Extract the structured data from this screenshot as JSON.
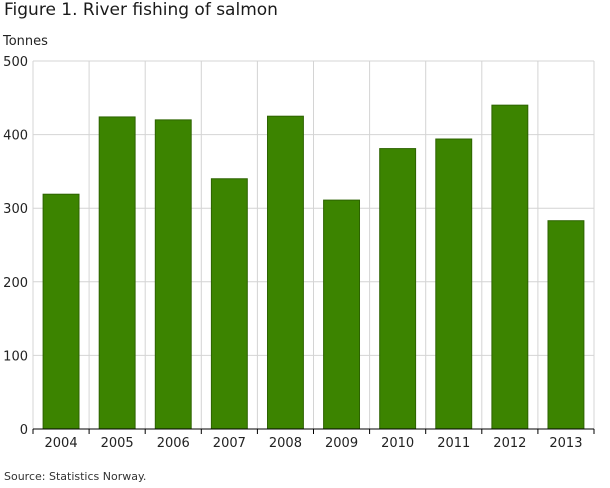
{
  "title": "Figure 1. River fishing of salmon",
  "source": "Source: Statistics Norway.",
  "chart_data": {
    "type": "bar",
    "title": "Figure 1. River fishing of salmon",
    "ylabel": "Tonnes",
    "xlabel": "",
    "categories": [
      "2004",
      "2005",
      "2006",
      "2007",
      "2008",
      "2009",
      "2010",
      "2011",
      "2012",
      "2013"
    ],
    "values": [
      319,
      424,
      420,
      340,
      425,
      311,
      381,
      394,
      440,
      283
    ],
    "ylim": [
      0,
      500
    ],
    "yticks": [
      0,
      100,
      200,
      300,
      400,
      500
    ],
    "grid": true,
    "bar_color": "#3c8400",
    "bar_stroke": "#2d6300",
    "grid_color": "#d4d4d4",
    "axis_color": "#000000"
  }
}
